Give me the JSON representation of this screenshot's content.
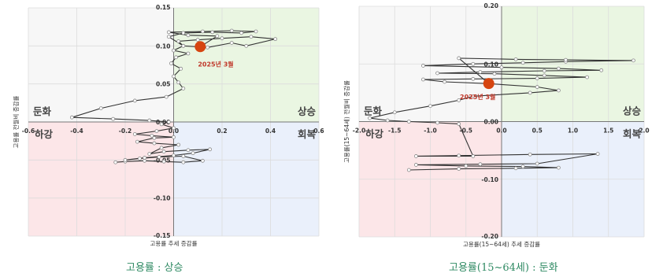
{
  "chart_data": [
    {
      "type": "scatter",
      "title": "",
      "xlabel": "고용률 추세 증감률",
      "ylabel": "고용률 전월비 증감률",
      "xlim": [
        -0.6,
        0.6
      ],
      "ylim": [
        -0.15,
        0.15
      ],
      "x_ticks": [
        "-0.6",
        "-0.4",
        "-0.2",
        "0.0",
        "0.2",
        "0.4",
        "0.6"
      ],
      "y_ticks": [
        "0.15",
        "0.10",
        "0.05",
        "0.00",
        "-0.05",
        "-0.10",
        "-0.15"
      ],
      "quadrant_labels": {
        "upper_left": "둔화",
        "upper_right": "상승",
        "lower_left": "하강",
        "lower_right": "회복"
      },
      "quadrant_colors": {
        "upper_left": "#f7f7f7",
        "upper_right": "#eaf6e2",
        "lower_left": "#fce6e8",
        "lower_right": "#eaf0fb"
      },
      "point_label": "2025년 3월",
      "highlight": {
        "x": 0.11,
        "y": 0.099
      },
      "series": [
        {
          "points": [
            [
              -0.24,
              -0.053
            ],
            [
              -0.2,
              -0.052
            ],
            [
              -0.12,
              -0.051
            ],
            [
              -0.04,
              -0.052
            ],
            [
              0.04,
              -0.053
            ],
            [
              0.12,
              -0.051
            ],
            [
              0.04,
              -0.045
            ],
            [
              -0.06,
              -0.046
            ],
            [
              -0.14,
              -0.048
            ],
            [
              -0.2,
              -0.05
            ],
            [
              -0.12,
              -0.047
            ],
            [
              0.0,
              -0.044
            ],
            [
              0.08,
              -0.041
            ],
            [
              0.15,
              -0.036
            ],
            [
              0.06,
              -0.037
            ],
            [
              -0.04,
              -0.039
            ],
            [
              -0.1,
              -0.042
            ],
            [
              -0.05,
              -0.034
            ],
            [
              0.02,
              -0.03
            ],
            [
              -0.08,
              -0.028
            ],
            [
              -0.15,
              -0.026
            ],
            [
              -0.08,
              -0.021
            ],
            [
              0.0,
              -0.02
            ],
            [
              -0.09,
              -0.018
            ],
            [
              -0.16,
              -0.016
            ],
            [
              -0.07,
              -0.012
            ],
            [
              0.0,
              -0.008
            ],
            [
              -0.05,
              -0.003
            ],
            [
              -0.02,
              0.0
            ],
            [
              -0.1,
              0.002
            ],
            [
              -0.25,
              0.004
            ],
            [
              -0.42,
              0.006
            ],
            [
              -0.3,
              0.018
            ],
            [
              -0.16,
              0.028
            ],
            [
              -0.03,
              0.033
            ],
            [
              0.04,
              0.044
            ],
            [
              0.02,
              0.052
            ],
            [
              0.0,
              0.06
            ],
            [
              0.03,
              0.07
            ],
            [
              -0.01,
              0.077
            ],
            [
              0.01,
              0.085
            ],
            [
              0.06,
              0.09
            ],
            [
              0.0,
              0.094
            ],
            [
              0.04,
              0.1
            ],
            [
              0.02,
              0.106
            ],
            [
              0.1,
              0.108
            ],
            [
              0.2,
              0.11
            ],
            [
              0.32,
              0.112
            ],
            [
              0.42,
              0.109
            ],
            [
              0.3,
              0.1
            ],
            [
              0.24,
              0.104
            ],
            [
              0.14,
              0.098
            ],
            [
              0.04,
              0.1
            ],
            [
              -0.02,
              0.112
            ],
            [
              0.04,
              0.117
            ],
            [
              0.16,
              0.118
            ],
            [
              0.28,
              0.117
            ],
            [
              0.34,
              0.119
            ],
            [
              0.24,
              0.12
            ],
            [
              0.12,
              0.119
            ],
            [
              -0.02,
              0.118
            ],
            [
              0.06,
              0.114
            ],
            [
              0.18,
              0.113
            ],
            [
              0.11,
              0.099
            ]
          ]
        }
      ]
    },
    {
      "type": "scatter",
      "title": "",
      "xlabel": "고용률(15~64세) 추세 증감률",
      "ylabel": "고용률(15~64세) 전월비 증감률",
      "xlim": [
        -2.0,
        2.0
      ],
      "ylim": [
        -0.2,
        0.2
      ],
      "x_ticks": [
        "-2.0",
        "-1.5",
        "-1.0",
        "-0.5",
        "0.0",
        "0.5",
        "1.0",
        "1.5",
        "2.0"
      ],
      "y_ticks": [
        "0.20",
        "0.10",
        "0.00",
        "-0.10",
        "-0.20"
      ],
      "quadrant_labels": {
        "upper_left": "둔화",
        "upper_right": "상승",
        "lower_left": "하강",
        "lower_right": "회복"
      },
      "quadrant_colors": {
        "upper_left": "#f7f7f7",
        "upper_right": "#eaf6e2",
        "lower_left": "#fce6e8",
        "lower_right": "#eaf0fb"
      },
      "point_label": "2025년 3월",
      "highlight": {
        "x": -0.18,
        "y": 0.066
      },
      "series": [
        {
          "points": [
            [
              -1.3,
              -0.084
            ],
            [
              -0.6,
              -0.082
            ],
            [
              0.2,
              -0.081
            ],
            [
              0.8,
              -0.08
            ],
            [
              0.3,
              -0.078
            ],
            [
              -0.5,
              -0.077
            ],
            [
              -1.2,
              -0.075
            ],
            [
              -0.3,
              -0.074
            ],
            [
              0.5,
              -0.073
            ],
            [
              1.35,
              -0.056
            ],
            [
              0.4,
              -0.057
            ],
            [
              -0.6,
              -0.059
            ],
            [
              -1.2,
              -0.06
            ],
            [
              -0.4,
              -0.06
            ],
            [
              -0.6,
              -0.004
            ],
            [
              -0.9,
              -0.002
            ],
            [
              -1.3,
              0.0
            ],
            [
              -1.6,
              0.002
            ],
            [
              -1.85,
              0.006
            ],
            [
              -1.5,
              0.016
            ],
            [
              -1.0,
              0.027
            ],
            [
              -0.6,
              0.037
            ],
            [
              -0.4,
              0.044
            ],
            [
              0.4,
              0.05
            ],
            [
              0.8,
              0.054
            ],
            [
              0.5,
              0.06
            ],
            [
              -0.2,
              0.066
            ],
            [
              -0.8,
              0.069
            ],
            [
              -1.1,
              0.073
            ],
            [
              -0.4,
              0.074
            ],
            [
              0.5,
              0.075
            ],
            [
              1.2,
              0.077
            ],
            [
              0.6,
              0.08
            ],
            [
              -0.1,
              0.083
            ],
            [
              -0.9,
              0.084
            ],
            [
              -0.3,
              0.086
            ],
            [
              0.6,
              0.088
            ],
            [
              1.4,
              0.089
            ],
            [
              0.8,
              0.092
            ],
            [
              0.0,
              0.094
            ],
            [
              -1.1,
              0.097
            ],
            [
              -0.4,
              0.1
            ],
            [
              0.3,
              0.102
            ],
            [
              0.9,
              0.104
            ],
            [
              1.85,
              0.106
            ],
            [
              0.9,
              0.107
            ],
            [
              0.2,
              0.108
            ],
            [
              -0.6,
              0.11
            ],
            [
              -0.18,
              0.066
            ]
          ]
        }
      ]
    }
  ],
  "captions": {
    "left": "고용률 : 상승",
    "right": "고용률(15~64세) : 둔화"
  },
  "colors": {
    "line": "#333333",
    "marker_fill": "#ffffff",
    "marker_stroke": "#888888",
    "highlight": "#d64510",
    "label_red": "#c0392b",
    "caption": "#2f8a63"
  }
}
